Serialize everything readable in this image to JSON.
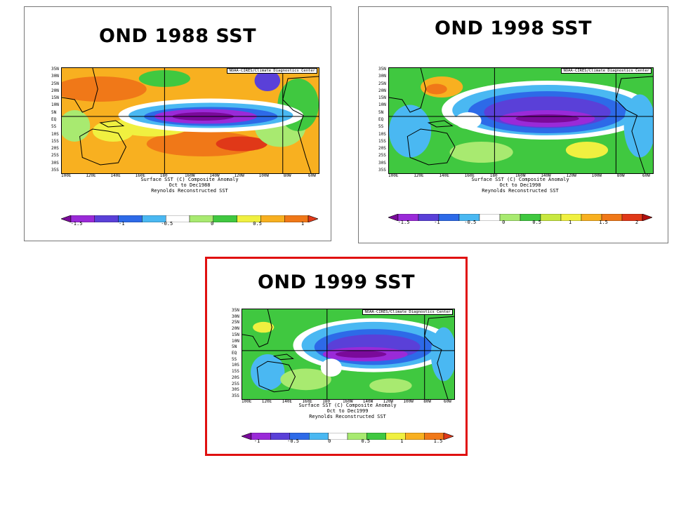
{
  "panels": [
    {
      "title": "OND 1988 SST",
      "credit": "NOAA-CIRES/Climate Diagnostics Center",
      "caption_lines": [
        "Surface SST (C) Composite Anomaly",
        "Oct to Dec1988",
        "Reynolds Reconstructed SST"
      ],
      "colorbar_labels": [
        "-1.5",
        "-1",
        "-0.5",
        "0",
        "0.5",
        "1"
      ],
      "colorbar_colors": [
        "#7a0a9a",
        "#9a2ad8",
        "#5a40d8",
        "#2d6ae8",
        "#4ab8f2",
        "#ffffff",
        "#a8ea70",
        "#40c840",
        "#f0f040",
        "#f8b020",
        "#f07818",
        "#e03818"
      ],
      "style": "cold"
    },
    {
      "title": "OND 1998 SST",
      "credit": "NOAA-CIRES/Climate Diagnostics Center",
      "caption_lines": [
        "Surface SST (C) Composite Anomaly",
        "Oct to Dec1998",
        "Reynolds Reconstructed SST"
      ],
      "colorbar_labels": [
        "-1.5",
        "-1",
        "-0.5",
        "0",
        "0.5",
        "1",
        "1.5",
        "2"
      ],
      "colorbar_colors": [
        "#7a0a9a",
        "#9a2ad8",
        "#5a40d8",
        "#2d6ae8",
        "#4ab8f2",
        "#ffffff",
        "#a8ea70",
        "#40c840",
        "#c8e840",
        "#f0f040",
        "#f8b020",
        "#f07818",
        "#e03818",
        "#b01010"
      ],
      "style": "cold2"
    },
    {
      "title": "OND 1999 SST",
      "credit": "NOAA-CIRES/Climate Diagnostics Center",
      "caption_lines": [
        "Surface SST (C) Composite Anomaly",
        "Oct to Dec1999",
        "Reynolds Reconstructed SST"
      ],
      "colorbar_labels": [
        "-1",
        "-0.5",
        "0",
        "0.5",
        "1",
        "1.5"
      ],
      "colorbar_colors": [
        "#7a0a9a",
        "#9a2ad8",
        "#5a40d8",
        "#2d6ae8",
        "#4ab8f2",
        "#ffffff",
        "#a8ea70",
        "#40c840",
        "#f0f040",
        "#f8b020",
        "#f07818",
        "#e03818"
      ],
      "style": "cold3"
    }
  ],
  "lat_labels": [
    "35N",
    "30N",
    "25N",
    "20N",
    "15N",
    "10N",
    "5N",
    "EQ",
    "5S",
    "10S",
    "15S",
    "20S",
    "25S",
    "30S",
    "35S"
  ],
  "lon_labels": [
    "100E",
    "120E",
    "140E",
    "160E",
    "180",
    "160W",
    "140W",
    "120W",
    "100W",
    "80W",
    "60W"
  ]
}
